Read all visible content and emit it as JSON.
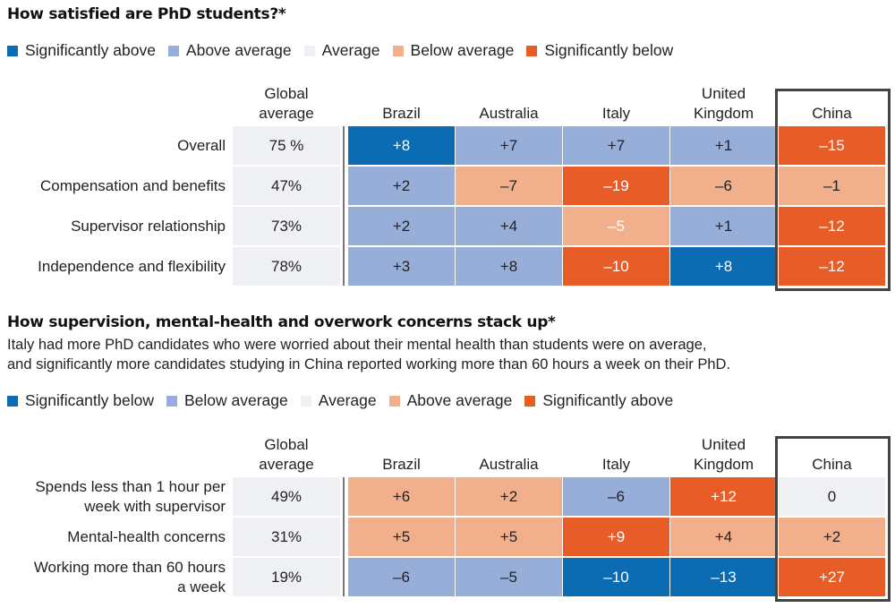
{
  "colors": {
    "dark_blue": "#0b6cb4",
    "light_blue": "#97aed8",
    "neutral": "#eef0f3",
    "light_orange": "#f1af8c",
    "dark_orange": "#e85c28"
  },
  "chart_data": [
    {
      "type": "heatmap",
      "title": "How satisfied are PhD students?*",
      "legend": [
        {
          "label": "Significantly above",
          "color": "#0b6cb4"
        },
        {
          "label": "Above average",
          "color": "#97aed8"
        },
        {
          "label": "Average",
          "color": "#eef0f3"
        },
        {
          "label": "Below average",
          "color": "#f1af8c"
        },
        {
          "label": "Significantly below",
          "color": "#e85c28"
        }
      ],
      "global_header": "Global average",
      "countries": [
        "Brazil",
        "Australia",
        "Italy",
        "United Kingdom",
        "China"
      ],
      "highlighted_country": "China",
      "rows": [
        {
          "label": "Overall",
          "global": "75 %",
          "values": [
            "+8",
            "+7",
            "+7",
            "+1",
            "–15"
          ],
          "categories": [
            "sig",
            "avg+",
            "avg+",
            "avg+",
            "sig-"
          ]
        },
        {
          "label": "Compensation and benefits",
          "global": "47%",
          "values": [
            "+2",
            "–7",
            "–19",
            "–6",
            "–1"
          ],
          "categories": [
            "avg+",
            "avg-",
            "sig-",
            "avg-",
            "avg-"
          ]
        },
        {
          "label": "Supervisor relationship",
          "global": "73%",
          "values": [
            "+2",
            "+4",
            "–5",
            "+1",
            "–12"
          ],
          "categories": [
            "avg+",
            "avg+",
            "avg-w",
            "avg+",
            "sig-"
          ]
        },
        {
          "label": "Independence and flexibility",
          "global": "78%",
          "values": [
            "+3",
            "+8",
            "–10",
            "+8",
            "–12"
          ],
          "categories": [
            "avg+",
            "avg+",
            "sig-",
            "sig",
            "sig-"
          ]
        }
      ]
    },
    {
      "type": "heatmap",
      "title": "How supervision, mental-health and overwork concerns stack up*",
      "subtitle_lines": [
        "Italy had more PhD candidates who were worried about their mental health than students were on average,",
        "and significantly more candidates studying in China reported working more than 60 hours a week on their PhD."
      ],
      "legend": [
        {
          "label": "Significantly below",
          "color": "#0b6cb4"
        },
        {
          "label": "Below average",
          "color": "#97aed8"
        },
        {
          "label": "Average",
          "color": "#eef0f3"
        },
        {
          "label": "Above average",
          "color": "#f1af8c"
        },
        {
          "label": "Significantly above",
          "color": "#e85c28"
        }
      ],
      "global_header": "Global average",
      "countries": [
        "Brazil",
        "Australia",
        "Italy",
        "United Kingdom",
        "China"
      ],
      "highlighted_country": "China",
      "rows": [
        {
          "label": "Spends less than 1 hour per week with supervisor",
          "global": "49%",
          "values": [
            "+6",
            "+2",
            "–6",
            "+12",
            "0"
          ],
          "categories": [
            "avg-",
            "avg-",
            "avg+",
            "sig-",
            "neutral"
          ]
        },
        {
          "label": "Mental-health concerns",
          "global": "31%",
          "values": [
            "+5",
            "+5",
            "+9",
            "+4",
            "+2"
          ],
          "categories": [
            "avg-",
            "avg-",
            "sig-",
            "avg-",
            "avg-"
          ]
        },
        {
          "label": "Working more than 60 hours a week",
          "global": "19%",
          "values": [
            "–6",
            "–5",
            "–10",
            "–13",
            "+27"
          ],
          "categories": [
            "avg+",
            "avg+",
            "sig",
            "sig",
            "sig-"
          ]
        }
      ]
    }
  ]
}
